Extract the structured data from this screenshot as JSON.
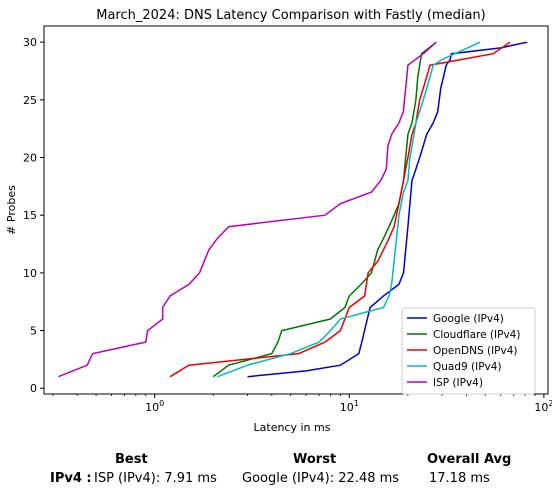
{
  "chart_data": {
    "type": "line",
    "title": "March_2024: DNS Latency Comparison with Fastly (median)",
    "xlabel": "Latency in ms",
    "ylabel": "# Probes",
    "xscale": "log",
    "xlim": [
      0.27,
      105
    ],
    "ylim": [
      -0.5,
      31.4
    ],
    "xticks": [
      {
        "value": 1,
        "label": "10^0"
      },
      {
        "value": 10,
        "label": "10^1"
      },
      {
        "value": 100,
        "label": "10^2"
      }
    ],
    "yticks": [
      0,
      5,
      10,
      15,
      20,
      25,
      30
    ],
    "grid": false,
    "legend_position": "lower-right",
    "series": [
      {
        "name": "Google (IPv4)",
        "color": "#0000cc",
        "x": [
          3.0,
          6.0,
          9.0,
          11.2,
          11.6,
          12.8,
          15.0,
          18.0,
          19.0,
          19.5,
          20.0,
          20.5,
          21.0,
          22.0,
          23.0,
          25.0,
          27.0,
          28.5,
          29.5,
          30.5,
          31.5,
          33.0,
          33.5,
          60.0,
          72.0,
          82.0
        ],
        "y": [
          1,
          1.5,
          2,
          3,
          4,
          7,
          8,
          9,
          10,
          12,
          14,
          16,
          18,
          19,
          20,
          22,
          23,
          24,
          26,
          27,
          28,
          28.5,
          29,
          29.5,
          29.8,
          30
        ]
      },
      {
        "name": "Cloudflare (IPv4)",
        "color": "#007700",
        "x": [
          2.0,
          2.4,
          4.0,
          4.3,
          4.5,
          8.0,
          9.5,
          10.0,
          11.5,
          13.0,
          13.5,
          14.0,
          15.0,
          16.0,
          17.0,
          18.0,
          19.0,
          19.5,
          20.0,
          21.0,
          22.0,
          22.5,
          23.0,
          23.5,
          28.0
        ],
        "y": [
          1,
          2,
          3,
          4,
          5,
          6,
          7,
          8,
          9,
          10,
          11,
          12,
          13,
          14,
          15,
          16,
          18,
          20,
          22,
          23,
          25,
          27,
          28,
          29,
          30
        ]
      },
      {
        "name": "OpenDNS (IPv4)",
        "color": "#ee0000",
        "x": [
          1.2,
          1.5,
          5.5,
          7.5,
          9.0,
          10.0,
          12.0,
          12.5,
          14.0,
          15.0,
          16.0,
          17.0,
          18.0,
          18.5,
          19.0,
          20.0,
          21.0,
          22.0,
          22.5,
          23.0,
          24.0,
          25.0,
          26.0,
          55.0,
          67.0
        ],
        "y": [
          1,
          2,
          3,
          4,
          5,
          7,
          8,
          10,
          11,
          12,
          13,
          14,
          16,
          17,
          18,
          20,
          22,
          23,
          24,
          25,
          26,
          27,
          28,
          29,
          30
        ]
      },
      {
        "name": "Quad9 (IPv4)",
        "color": "#00bbbb",
        "x": [
          2.1,
          3.0,
          5.0,
          7.0,
          8.0,
          9.0,
          15.0,
          16.0,
          16.5,
          17.0,
          17.5,
          18.0,
          19.0,
          20.0,
          20.5,
          21.0,
          21.5,
          22.0,
          23.0,
          24.0,
          25.0,
          26.0,
          27.0,
          30.0,
          47.0
        ],
        "y": [
          1,
          2,
          3,
          4,
          5,
          6,
          7,
          8,
          9,
          11,
          13,
          15,
          17,
          18,
          20,
          21,
          22,
          23,
          24,
          25,
          26,
          27,
          28,
          28.5,
          30
        ]
      },
      {
        "name": "ISP (IPv4)",
        "color": "#bb00bb",
        "x": [
          0.32,
          0.45,
          0.48,
          0.9,
          0.92,
          1.1,
          1.1,
          1.2,
          1.5,
          1.7,
          1.9,
          2.1,
          2.4,
          7.5,
          9.0,
          13.0,
          14.5,
          15.5,
          15.8,
          16.5,
          18.0,
          19.0,
          19.2,
          19.5,
          20.0,
          24.0,
          28.0
        ],
        "y": [
          1,
          2,
          3,
          4,
          5,
          6,
          7,
          8,
          9,
          10,
          12,
          13,
          14,
          15,
          16,
          17,
          18,
          19,
          21,
          22,
          23,
          24,
          25,
          26,
          28,
          29,
          30
        ]
      }
    ]
  },
  "summary": {
    "best_header": "Best",
    "worst_header": "Worst",
    "avg_header": "Overall Avg",
    "row_label": "IPv4 :",
    "best_value": "ISP (IPv4): 7.91 ms",
    "worst_value": "Google (IPv4): 22.48 ms",
    "avg_value": "17.18 ms"
  }
}
